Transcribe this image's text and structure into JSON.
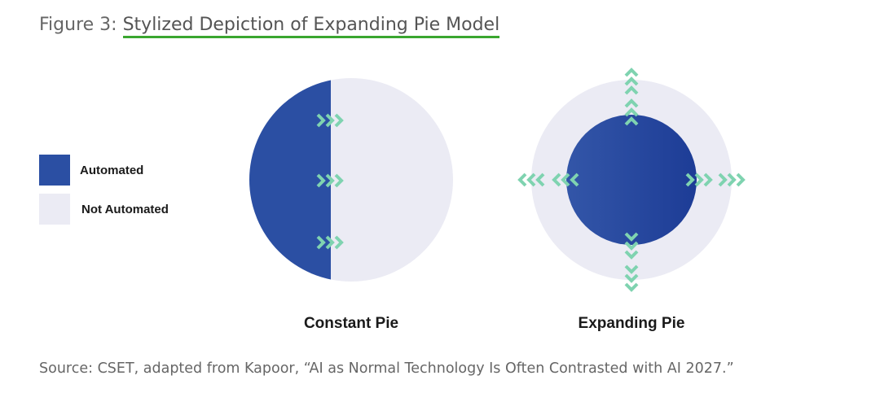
{
  "header": {
    "label": "Figure 3:",
    "title": "Stylized Depiction of Expanding Pie Model"
  },
  "legend": [
    {
      "label": "Automated"
    },
    {
      "label": "Not Automated"
    }
  ],
  "panels": [
    {
      "label": "Constant Pie"
    },
    {
      "label": "Expanding Pie"
    }
  ],
  "source": "Source: CSET, adapted from Kapoor, “AI as Normal Technology Is Often Contrasted with AI 2027.”"
}
